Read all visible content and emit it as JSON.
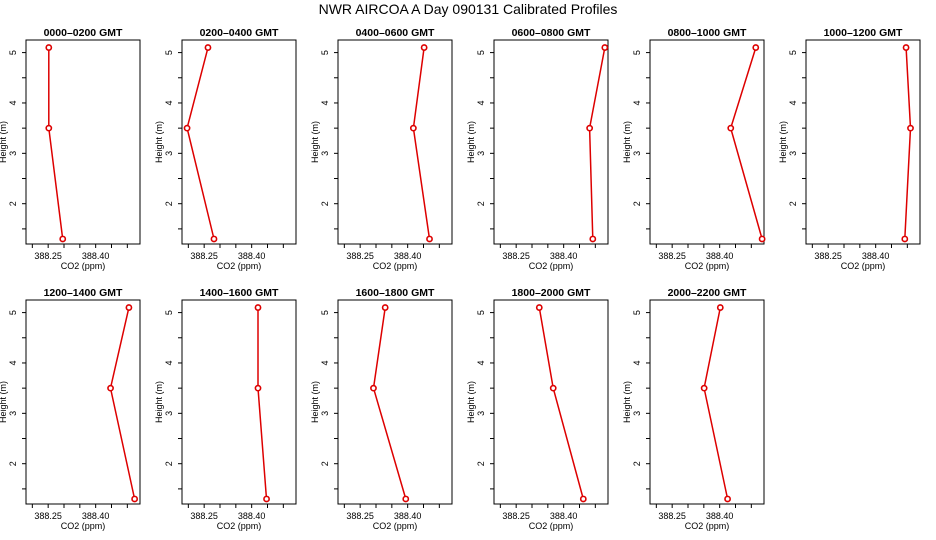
{
  "figure": {
    "title": "NWR AIRCOA A  Day 090131  Calibrated Profiles"
  },
  "chart_data": [
    {
      "type": "line",
      "title": "0000–0200 GMT",
      "xlabel": "CO2 (ppm)",
      "ylabel": "Height (m)",
      "xlim": [
        388.18,
        388.54
      ],
      "ylim": [
        1.2,
        5.25
      ],
      "xticks": [
        "388.25",
        "388.40"
      ],
      "yticks": [
        "2",
        "3",
        "4",
        "5"
      ],
      "series": [
        {
          "x": [
            388.252,
            388.252,
            388.296
          ],
          "y": [
            5.1,
            3.5,
            1.3
          ]
        }
      ]
    },
    {
      "type": "line",
      "title": "0200–0400 GMT",
      "xlabel": "CO2 (ppm)",
      "ylabel": "Height (m)",
      "xlim": [
        388.18,
        388.54
      ],
      "ylim": [
        1.2,
        5.25
      ],
      "xticks": [
        "388.25",
        "388.40"
      ],
      "yticks": [
        "2",
        "3",
        "4",
        "5"
      ],
      "series": [
        {
          "x": [
            388.262,
            388.196,
            388.281
          ],
          "y": [
            5.1,
            3.5,
            1.3
          ]
        }
      ]
    },
    {
      "type": "line",
      "title": "0400–0600 GMT",
      "xlabel": "CO2 (ppm)",
      "ylabel": "Height (m)",
      "xlim": [
        388.18,
        388.54
      ],
      "ylim": [
        1.2,
        5.25
      ],
      "xticks": [
        "388.25",
        "388.40"
      ],
      "yticks": [
        "2",
        "3",
        "4",
        "5"
      ],
      "series": [
        {
          "x": [
            388.452,
            388.418,
            388.469
          ],
          "y": [
            5.1,
            3.5,
            1.3
          ]
        }
      ]
    },
    {
      "type": "line",
      "title": "0600–0800 GMT",
      "xlabel": "CO2 (ppm)",
      "ylabel": "Height (m)",
      "xlim": [
        388.18,
        388.54
      ],
      "ylim": [
        1.2,
        5.25
      ],
      "xticks": [
        "388.25",
        "388.40"
      ],
      "yticks": [
        "2",
        "3",
        "4",
        "5"
      ],
      "series": [
        {
          "x": [
            388.53,
            388.482,
            388.492
          ],
          "y": [
            5.1,
            3.5,
            1.3
          ]
        }
      ]
    },
    {
      "type": "line",
      "title": "0800–1000 GMT",
      "xlabel": "CO2 (ppm)",
      "ylabel": "Height (m)",
      "xlim": [
        388.18,
        388.54
      ],
      "ylim": [
        1.2,
        5.25
      ],
      "xticks": [
        "388.25",
        "388.40"
      ],
      "yticks": [
        "2",
        "3",
        "4",
        "5"
      ],
      "series": [
        {
          "x": [
            388.514,
            388.435,
            388.534
          ],
          "y": [
            5.1,
            3.5,
            1.3
          ]
        }
      ]
    },
    {
      "type": "line",
      "title": "1000–1200 GMT",
      "xlabel": "CO2 (ppm)",
      "ylabel": "Height (m)",
      "xlim": [
        388.18,
        388.54
      ],
      "ylim": [
        1.2,
        5.25
      ],
      "xticks": [
        "388.25",
        "388.40"
      ],
      "yticks": [
        "2",
        "3",
        "4",
        "5"
      ],
      "series": [
        {
          "x": [
            388.496,
            388.51,
            388.492
          ],
          "y": [
            5.1,
            3.5,
            1.3
          ]
        }
      ]
    },
    {
      "type": "line",
      "title": "1200–1400 GMT",
      "xlabel": "CO2 (ppm)",
      "ylabel": "Height (m)",
      "xlim": [
        388.18,
        388.54
      ],
      "ylim": [
        1.2,
        5.25
      ],
      "xticks": [
        "388.25",
        "388.40"
      ],
      "yticks": [
        "2",
        "3",
        "4",
        "5"
      ],
      "series": [
        {
          "x": [
            388.505,
            388.447,
            388.523
          ],
          "y": [
            5.1,
            3.5,
            1.3
          ]
        }
      ]
    },
    {
      "type": "line",
      "title": "1400–1600 GMT",
      "xlabel": "CO2 (ppm)",
      "ylabel": "Height (m)",
      "xlim": [
        388.18,
        388.54
      ],
      "ylim": [
        1.2,
        5.25
      ],
      "xticks": [
        "388.25",
        "388.40"
      ],
      "yticks": [
        "2",
        "3",
        "4",
        "5"
      ],
      "series": [
        {
          "x": [
            388.42,
            388.42,
            388.447
          ],
          "y": [
            5.1,
            3.5,
            1.3
          ]
        }
      ]
    },
    {
      "type": "line",
      "title": "1600–1800 GMT",
      "xlabel": "CO2 (ppm)",
      "ylabel": "Height (m)",
      "xlim": [
        388.18,
        388.54
      ],
      "ylim": [
        1.2,
        5.25
      ],
      "xticks": [
        "388.25",
        "388.40"
      ],
      "yticks": [
        "2",
        "3",
        "4",
        "5"
      ],
      "series": [
        {
          "x": [
            388.329,
            388.292,
            388.394
          ],
          "y": [
            5.1,
            3.5,
            1.3
          ]
        }
      ]
    },
    {
      "type": "line",
      "title": "1800–2000 GMT",
      "xlabel": "CO2 (ppm)",
      "ylabel": "Height (m)",
      "xlim": [
        388.18,
        388.54
      ],
      "ylim": [
        1.2,
        5.25
      ],
      "xticks": [
        "388.25",
        "388.40"
      ],
      "yticks": [
        "2",
        "3",
        "4",
        "5"
      ],
      "series": [
        {
          "x": [
            388.323,
            388.367,
            388.462
          ],
          "y": [
            5.1,
            3.5,
            1.3
          ]
        }
      ]
    },
    {
      "type": "line",
      "title": "2000–2200 GMT",
      "xlabel": "CO2 (ppm)",
      "ylabel": "Height (m)",
      "xlim": [
        388.18,
        388.54
      ],
      "ylim": [
        1.2,
        5.25
      ],
      "xticks": [
        "388.25",
        "388.40"
      ],
      "yticks": [
        "2",
        "3",
        "4",
        "5"
      ],
      "series": [
        {
          "x": [
            388.402,
            388.351,
            388.425
          ],
          "y": [
            5.1,
            3.5,
            1.3
          ]
        }
      ]
    }
  ],
  "colors": {
    "line": "#dd0000",
    "marker_edge": "#dd0000",
    "axis": "#000000"
  }
}
